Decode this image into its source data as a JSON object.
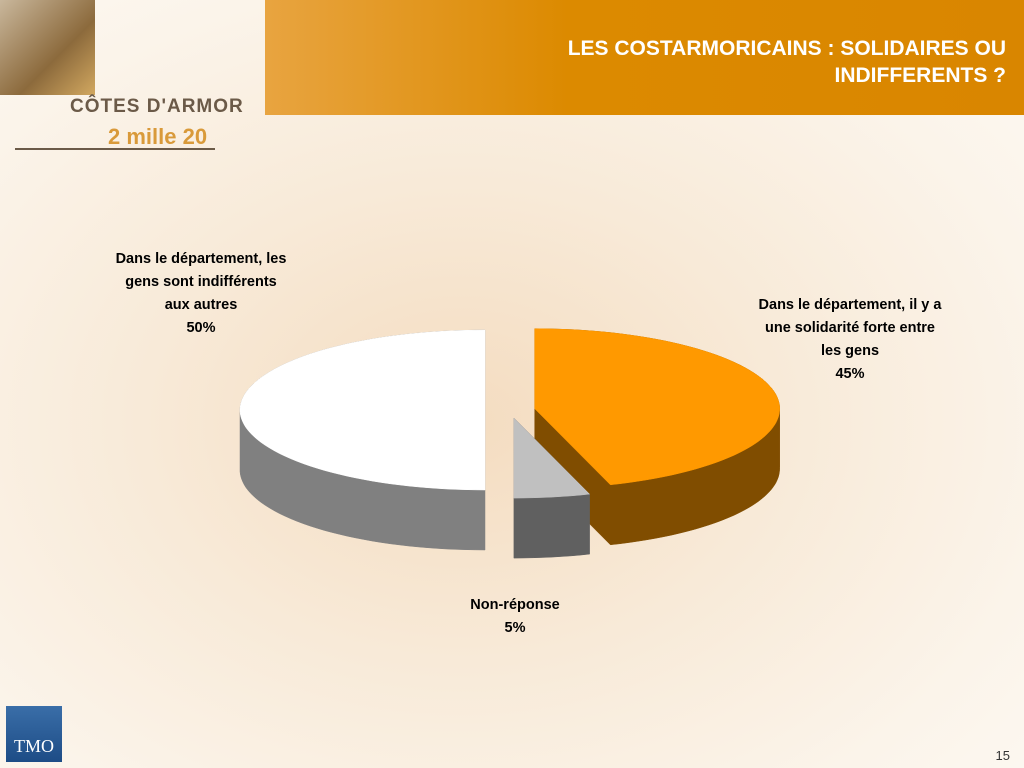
{
  "chart_data": {
    "type": "pie3d",
    "title": "LES COSTARMORICAINS : SOLIDAIRES OU INDIFFERENTS ?",
    "categories": [
      "Dans le département, il y a une solidarité forte entre les gens",
      "Non-réponse",
      "Dans le département, les gens sont indifférents aux autres"
    ],
    "values": [
      45,
      5,
      50
    ],
    "value_labels": [
      "45%",
      "5%",
      "50%"
    ],
    "colors": [
      "#FF9900",
      "#C0C0C0",
      "#FFFFFF"
    ]
  },
  "branding": {
    "logo_title": "CÔTES D'ARMOR",
    "logo_subtitle": "2 mille 20",
    "company": "TMO"
  },
  "page_number": 15
}
